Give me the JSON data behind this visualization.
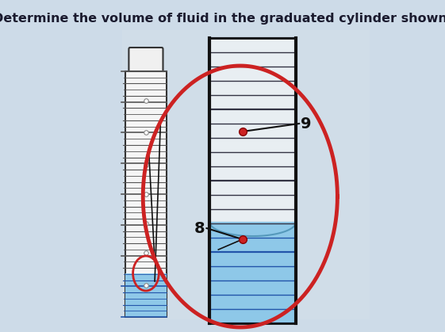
{
  "title": "Determine the volume of fluid in the graduated cylinder shown.",
  "title_fontsize": 11.5,
  "title_color": "#1a1a2e",
  "bg_color": "#cddbe8",
  "panel_color": "#c8d8e8",
  "cylinder_fill": "#e8eef2",
  "fluid_fill": "#8ec8e8",
  "fluid_fill_dark": "#6ab0d8",
  "label_8": "8",
  "label_9": "9",
  "circle_color": "#cc2222",
  "dot_color": "#cc2222",
  "line_color": "#222222",
  "grad_line_color": "#333344",
  "grad_line_color_fluid": "#2255aa"
}
